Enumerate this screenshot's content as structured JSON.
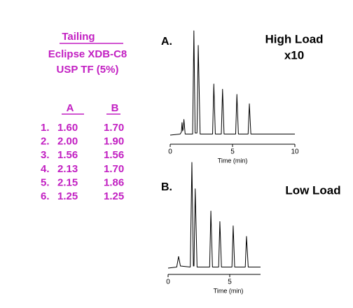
{
  "table": {
    "title": "Tailing",
    "subtitle": [
      "Eclipse XDB-C8",
      "USP TF (5%)"
    ],
    "columns": [
      "A",
      "B"
    ],
    "rows": [
      [
        "1.",
        "1.60",
        "1.70"
      ],
      [
        "2.",
        "2.00",
        "1.90"
      ],
      [
        "3.",
        "1.56",
        "1.56"
      ],
      [
        "4.",
        "2.13",
        "1.70"
      ],
      [
        "5.",
        "2.15",
        "1.86"
      ],
      [
        "6.",
        "1.25",
        "1.25"
      ]
    ]
  },
  "chart_data": [
    {
      "type": "line",
      "title": "A.",
      "annotations": [
        "High Load",
        "x10"
      ],
      "x_label": "Time (min)",
      "x": [
        0,
        0.8,
        0.9,
        0.95,
        1.0,
        1.05,
        1.1,
        1.2,
        1.8,
        1.9,
        2.0,
        2.15,
        2.25,
        2.4,
        3.4,
        3.5,
        3.62,
        4.1,
        4.2,
        4.32,
        5.25,
        5.35,
        5.47,
        6.25,
        6.35,
        6.47,
        10
      ],
      "values": [
        0,
        1,
        3,
        12,
        4,
        6,
        15,
        1,
        1,
        100,
        2,
        2,
        86,
        1,
        1,
        49,
        1,
        1,
        44,
        1,
        1,
        39,
        1,
        1,
        30,
        1,
        1
      ],
      "color": "#000000",
      "xlim": [
        0,
        10
      ],
      "xticks": [
        0,
        5,
        10
      ],
      "ylim": [
        0,
        100
      ]
    },
    {
      "type": "line",
      "title": "B.",
      "annotations": [
        "Low Load"
      ],
      "x_label": "Time (min)",
      "x": [
        0,
        0.7,
        0.85,
        1.0,
        1.8,
        1.93,
        2.05,
        2.1,
        2.2,
        2.35,
        3.37,
        3.47,
        3.6,
        4.1,
        4.2,
        4.33,
        5.18,
        5.28,
        5.4,
        6.26,
        6.36,
        6.5,
        7.5
      ],
      "values": [
        0,
        1,
        11,
        2,
        1,
        100,
        2,
        2,
        75,
        1,
        1,
        54,
        1,
        1,
        44,
        1,
        1,
        40,
        1,
        1,
        30,
        1,
        1
      ],
      "color": "#000000",
      "xlim": [
        0,
        7.5
      ],
      "xticks": [
        0,
        5
      ],
      "ylim": [
        0,
        100
      ]
    }
  ]
}
